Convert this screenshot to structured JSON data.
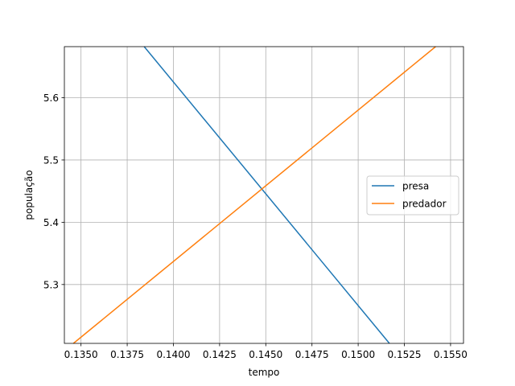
{
  "chart_data": {
    "type": "line",
    "title": "",
    "xlabel": "tempo",
    "ylabel": "população",
    "xlim": [
      0.1341,
      0.1557
    ],
    "ylim": [
      5.2055,
      5.682
    ],
    "grid": true,
    "legend_position": "right",
    "xticks": [
      0.135,
      0.1375,
      0.14,
      0.1425,
      0.145,
      0.1475,
      0.15,
      0.1525,
      0.155
    ],
    "xtick_labels": [
      "0.1350",
      "0.1375",
      "0.1400",
      "0.1425",
      "0.1450",
      "0.1475",
      "0.1500",
      "0.1525",
      "0.1550"
    ],
    "yticks": [
      5.3,
      5.4,
      5.5,
      5.6
    ],
    "ytick_labels": [
      "5.3",
      "5.4",
      "5.5",
      "5.6"
    ],
    "series": [
      {
        "name": "presa",
        "color": "#1f77b4",
        "x": [
          0.13842,
          0.15169
        ],
        "y": [
          5.682,
          5.2055
        ]
      },
      {
        "name": "predador",
        "color": "#ff7f0e",
        "x": [
          0.13459,
          0.15419
        ],
        "y": [
          5.2055,
          5.682
        ]
      }
    ]
  }
}
